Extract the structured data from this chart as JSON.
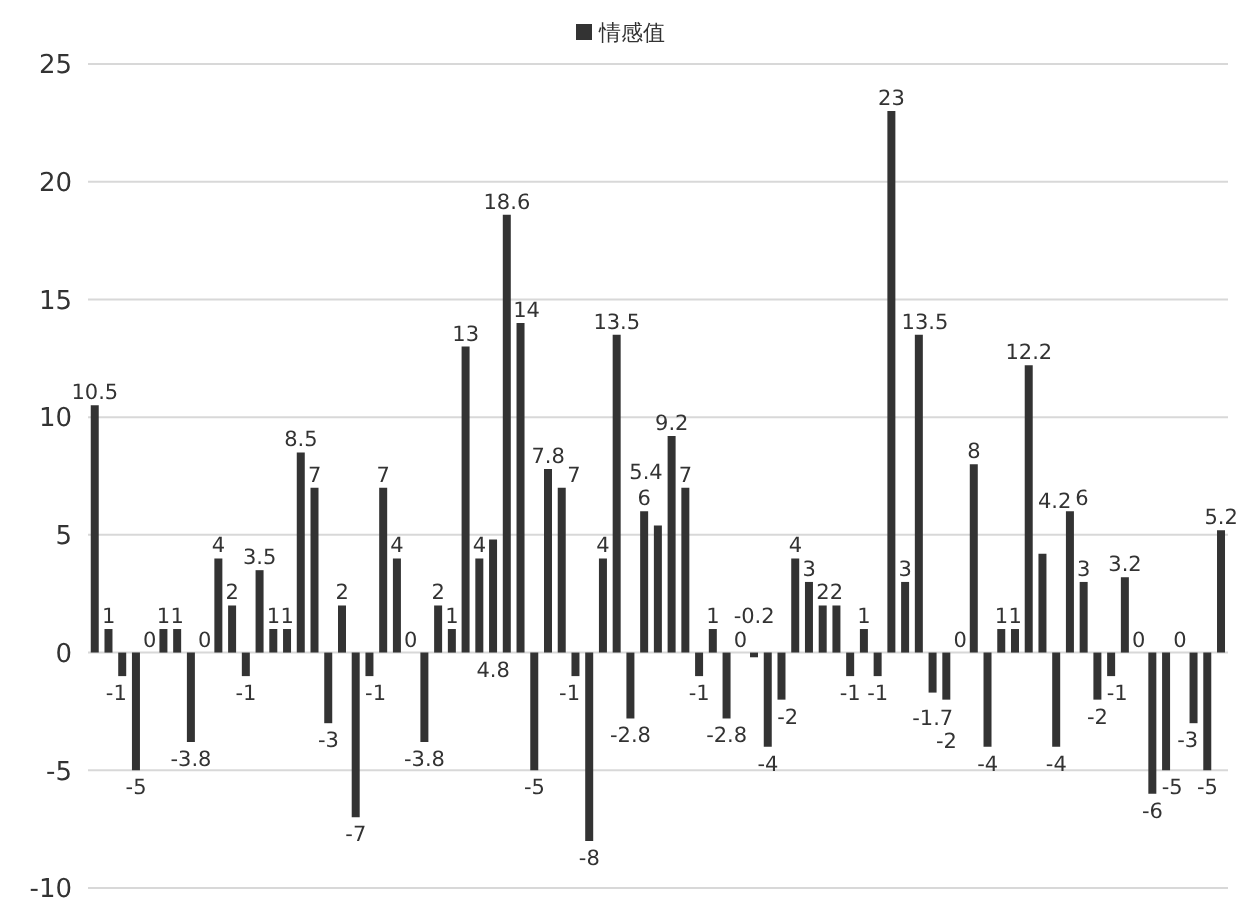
{
  "chart_data": {
    "type": "bar",
    "categories": [
      null,
      null,
      null,
      null,
      null,
      null,
      null,
      null,
      null,
      null,
      null,
      null,
      null,
      null,
      null,
      null,
      null,
      null,
      null,
      null,
      null,
      null,
      null,
      null,
      null,
      null,
      null,
      null,
      null,
      null,
      null,
      null,
      null,
      null,
      null,
      null,
      null,
      null,
      null,
      null,
      null,
      null,
      null,
      null,
      null,
      null,
      null,
      null,
      null,
      null,
      null,
      null,
      null,
      null,
      null,
      null,
      null,
      null,
      null,
      null,
      null,
      null,
      null,
      null,
      null,
      null,
      null,
      null,
      null,
      null,
      null,
      null,
      null,
      null,
      null,
      null,
      null,
      null,
      null,
      null,
      null,
      null,
      null
    ],
    "series": [
      {
        "name": "情感值",
        "color": "#333333",
        "values": [
          10.5,
          1,
          -1,
          -5,
          0,
          1,
          1,
          -3.8,
          0,
          4,
          2,
          -1,
          3.5,
          1,
          1,
          8.5,
          7,
          -3,
          2,
          -7,
          -1,
          7,
          4,
          0,
          -3.8,
          2,
          1,
          13,
          4,
          4.8,
          18.6,
          14,
          -5,
          7.8,
          7,
          -1,
          -8,
          4,
          13.5,
          -2.8,
          6,
          5.4,
          9.2,
          7,
          -1,
          1,
          -2.8,
          0,
          -0.2,
          -4,
          -2,
          4,
          3,
          2,
          2,
          -1,
          1,
          -1,
          23,
          3,
          13.5,
          -1.7,
          -2,
          0,
          8,
          -4,
          1,
          1,
          12.2,
          4.2,
          -4,
          6,
          3,
          -2,
          -1,
          3.2,
          0,
          -6,
          -5,
          0,
          -3,
          -5,
          5.2
        ]
      }
    ],
    "ylim": [
      -10,
      25
    ],
    "yticks": [
      -10,
      -5,
      0,
      5,
      10,
      15,
      20,
      25
    ],
    "grid": "y",
    "legend": "top",
    "data_labels": true
  }
}
